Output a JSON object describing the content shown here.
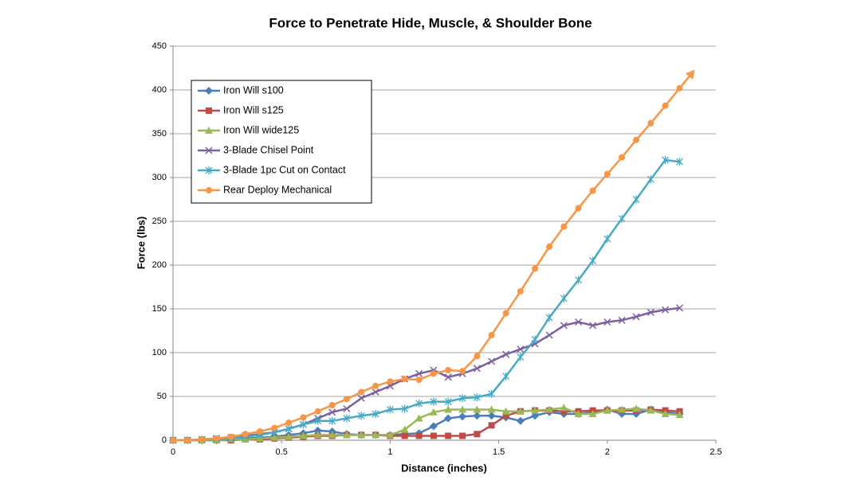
{
  "chart_data": {
    "type": "line",
    "title": "Force to Penetrate Hide, Muscle, & Shoulder Bone",
    "x_label": "Distance (inches)",
    "y_label": "Force (lbs)",
    "xlim": [
      0,
      2.5
    ],
    "xticks": [
      0,
      0.5,
      1,
      1.5,
      2,
      2.5
    ],
    "ylim": [
      0,
      450
    ],
    "yticks": [
      0,
      50,
      100,
      150,
      200,
      250,
      300,
      350,
      400,
      450
    ],
    "grid": true,
    "legend": "upper left",
    "x": [
      0,
      0.067,
      0.133,
      0.2,
      0.267,
      0.333,
      0.4,
      0.467,
      0.533,
      0.6,
      0.667,
      0.733,
      0.8,
      0.867,
      0.933,
      1,
      1.067,
      1.133,
      1.2,
      1.267,
      1.333,
      1.4,
      1.467,
      1.533,
      1.6,
      1.667,
      1.733,
      1.8,
      1.867,
      1.933,
      2,
      2.067,
      2.133,
      2.2,
      2.267,
      2.333
    ],
    "series": [
      {
        "name": "Iron Will s100",
        "color": "#4a7ebb",
        "marker": "diamond",
        "values": [
          0,
          0,
          0,
          0,
          1,
          2,
          3,
          4,
          6,
          8,
          11,
          10,
          7,
          6,
          6,
          6,
          7,
          8,
          16,
          25,
          27,
          28,
          28,
          26,
          22,
          28,
          32,
          30,
          30,
          32,
          35,
          30,
          30,
          35,
          32,
          30
        ]
      },
      {
        "name": "Iron Will s125",
        "color": "#be4b48",
        "marker": "square",
        "values": [
          0,
          0,
          0,
          0,
          0,
          1,
          1,
          2,
          3,
          4,
          5,
          5,
          6,
          6,
          6,
          5,
          5,
          5,
          5,
          5,
          5,
          7,
          17,
          28,
          33,
          34,
          34,
          33,
          33,
          34,
          34,
          34,
          34,
          35,
          34,
          33
        ]
      },
      {
        "name": "Iron Will wide125",
        "color": "#98b954",
        "marker": "triangle",
        "values": [
          0,
          0,
          0,
          0,
          1,
          1,
          2,
          3,
          4,
          5,
          6,
          6,
          6,
          6,
          6,
          6,
          12,
          25,
          32,
          35,
          35,
          35,
          35,
          33,
          33,
          34,
          35,
          37,
          30,
          30,
          34,
          35,
          36,
          34,
          30,
          29
        ]
      },
      {
        "name": "3-Blade Chisel Point",
        "color": "#7d60a0",
        "marker": "x",
        "values": [
          0,
          0,
          1,
          2,
          3,
          5,
          7,
          9,
          13,
          18,
          25,
          32,
          36,
          48,
          55,
          62,
          70,
          76,
          80,
          72,
          76,
          82,
          90,
          98,
          104,
          110,
          120,
          131,
          135,
          131,
          135,
          137,
          141,
          146,
          149,
          151
        ]
      },
      {
        "name": "3-Blade 1pc Cut on Contact",
        "color": "#46aac5",
        "marker": "star",
        "values": [
          0,
          0,
          1,
          1,
          2,
          4,
          6,
          9,
          13,
          18,
          22,
          22,
          25,
          28,
          30,
          35,
          36,
          42,
          44,
          44,
          48,
          49,
          53,
          73,
          95,
          115,
          140,
          162,
          183,
          205,
          230,
          253,
          275,
          298,
          320,
          318
        ]
      },
      {
        "name": "Rear Deploy Mechanical",
        "color": "#f79646",
        "marker": "circle",
        "arrow": true,
        "values": [
          0,
          0,
          1,
          2,
          4,
          7,
          10,
          14,
          20,
          26,
          33,
          40,
          47,
          55,
          62,
          67,
          70,
          69,
          76,
          80,
          79,
          96,
          120,
          145,
          170,
          196,
          221,
          244,
          265,
          285,
          304,
          323,
          343,
          362,
          382,
          402
        ]
      }
    ]
  }
}
